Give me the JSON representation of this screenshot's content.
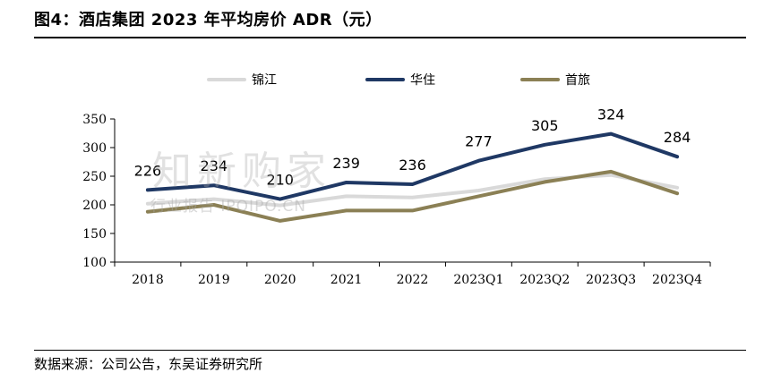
{
  "header": {
    "title": "图4：酒店集团 2023 年平均房价 ADR（元）"
  },
  "footer": {
    "source": "数据来源：公司公告，东吴证券研究所"
  },
  "watermark": {
    "line1": "知新购家",
    "line2": "行业报告 IPOIPO.CN"
  },
  "chart_data": {
    "type": "line",
    "title": "酒店集团 2023 年平均房价 ADR（元）",
    "categories": [
      "2018",
      "2019",
      "2020",
      "2021",
      "2022",
      "2023Q1",
      "2023Q2",
      "2023Q3",
      "2023Q4"
    ],
    "ylim": [
      100,
      350
    ],
    "yticks": [
      100,
      150,
      200,
      250,
      300,
      350
    ],
    "grid": false,
    "legend_position": "top",
    "series": [
      {
        "name": "锦江",
        "color": "#d9d9d9",
        "values": [
          202,
          210,
          199,
          215,
          213,
          225,
          245,
          252,
          230
        ],
        "labeled": false
      },
      {
        "name": "华住",
        "color": "#1f3864",
        "values": [
          226,
          234,
          210,
          239,
          236,
          277,
          305,
          324,
          284
        ],
        "labeled": true
      },
      {
        "name": "首旅",
        "color": "#8b8055",
        "values": [
          188,
          200,
          172,
          190,
          190,
          215,
          240,
          258,
          220
        ],
        "labeled": false
      }
    ]
  }
}
